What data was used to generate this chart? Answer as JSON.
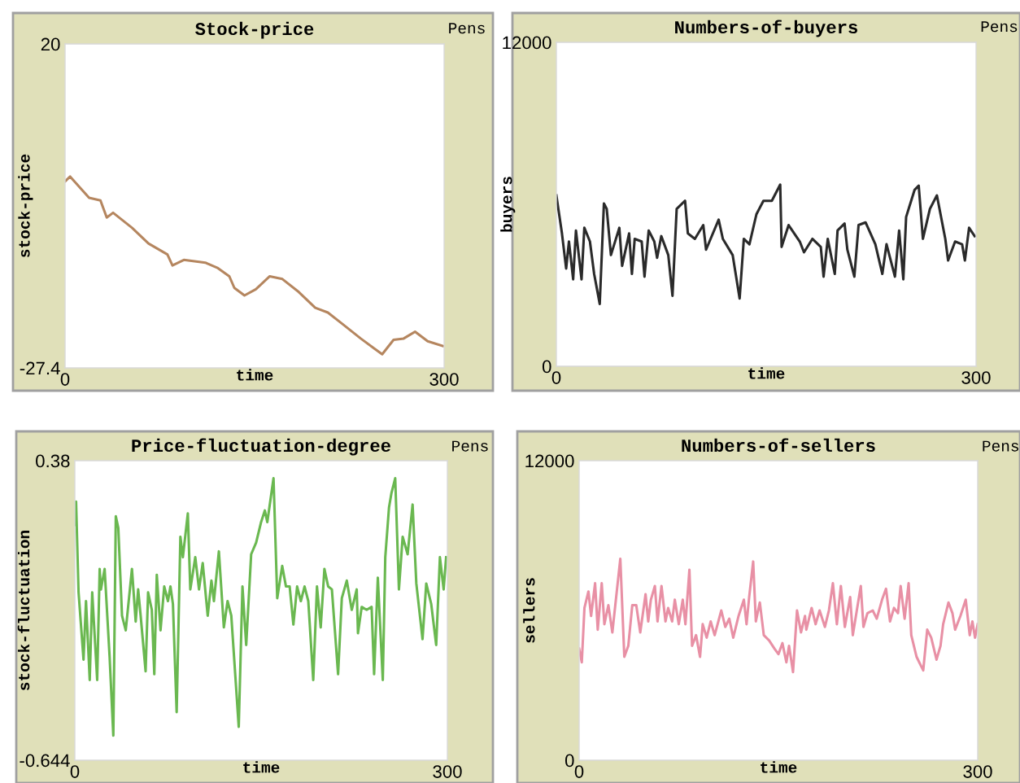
{
  "chart_data": [
    {
      "type": "line",
      "title": "Stock-price",
      "xlabel": "time",
      "ylabel": "stock-price",
      "annotations": [
        "Pens"
      ],
      "xlim": [
        0,
        300
      ],
      "ylim": [
        -27.4,
        20
      ],
      "xticks": [
        0,
        300
      ],
      "yticks": [
        -27.4,
        20
      ],
      "x": [
        0,
        4,
        19,
        28,
        33,
        38,
        53,
        66,
        81,
        85,
        94,
        111,
        121,
        130,
        134,
        142,
        151,
        162,
        172,
        185,
        198,
        208,
        219,
        234,
        245,
        251,
        260,
        268,
        277,
        287,
        299
      ],
      "series": [
        {
          "color": "#b5865f",
          "values": [
            -0.1,
            0.6,
            -2.5,
            -2.9,
            -5.4,
            -4.7,
            -6.9,
            -9.2,
            -10.8,
            -12.4,
            -11.6,
            -12.0,
            -12.8,
            -14.0,
            -15.7,
            -16.8,
            -15.9,
            -14.0,
            -14.4,
            -16.3,
            -18.6,
            -19.3,
            -20.9,
            -23.1,
            -24.6,
            -25.4,
            -23.3,
            -23.1,
            -22.1,
            -23.5,
            -24.2
          ]
        }
      ]
    },
    {
      "type": "line",
      "title": "Numbers-of-buyers",
      "xlabel": "time",
      "ylabel": "buyers",
      "annotations": [
        "Pens"
      ],
      "xlim": [
        0,
        300
      ],
      "ylim": [
        0,
        12000
      ],
      "xticks": [
        0,
        300
      ],
      "yticks": [
        0,
        12000
      ],
      "x": [
        0,
        4,
        7,
        9,
        12,
        14,
        18,
        20,
        24,
        27,
        31,
        34,
        36,
        39,
        45,
        47,
        52,
        54,
        56,
        61,
        63,
        66,
        70,
        72,
        75,
        80,
        83,
        86,
        92,
        94,
        99,
        105,
        107,
        116,
        119,
        126,
        131,
        134,
        138,
        143,
        148,
        154,
        160,
        161,
        166,
        174,
        177,
        183,
        189,
        191,
        194,
        199,
        201,
        206,
        208,
        213,
        216,
        221,
        228,
        233,
        236,
        242,
        245,
        248,
        250,
        256,
        259,
        262,
        267,
        272,
        278,
        280,
        285,
        290,
        292,
        295,
        299
      ],
      "series": [
        {
          "color": "#2a2a2a",
          "values": [
            6330,
            4920,
            3620,
            4620,
            3220,
            5030,
            3220,
            5130,
            4620,
            3420,
            2310,
            6030,
            5830,
            4120,
            5130,
            3720,
            4920,
            3420,
            4720,
            4620,
            3320,
            5030,
            4620,
            4020,
            4820,
            4120,
            2610,
            5830,
            6130,
            4920,
            4720,
            5230,
            4320,
            5430,
            4720,
            4120,
            2510,
            4720,
            4520,
            5630,
            6130,
            6130,
            6730,
            4420,
            5230,
            4620,
            4220,
            4720,
            4420,
            3320,
            4720,
            3420,
            5030,
            5290,
            4320,
            3320,
            5230,
            5330,
            4520,
            3420,
            4520,
            3320,
            5030,
            3220,
            5530,
            6530,
            6690,
            4720,
            5830,
            6330,
            4720,
            3920,
            4620,
            4520,
            3920,
            5130,
            4820
          ]
        }
      ]
    },
    {
      "type": "line",
      "title": "Price-fluctuation-degree",
      "xlabel": "time",
      "ylabel": "stock-fluctuation",
      "annotations": [
        "Pens"
      ],
      "xlim": [
        0,
        300
      ],
      "ylim": [
        -0.644,
        0.38
      ],
      "xticks": [
        0,
        300
      ],
      "yticks": [
        -0.644,
        0.38
      ],
      "x": [
        0,
        1,
        3,
        7,
        9,
        12,
        14,
        18,
        20,
        21,
        24,
        28,
        31,
        33,
        35,
        38,
        41,
        46,
        49,
        51,
        53,
        57,
        59,
        62,
        64,
        66,
        69,
        72,
        75,
        77,
        79,
        82,
        85,
        87,
        91,
        93,
        97,
        100,
        103,
        107,
        110,
        112,
        116,
        120,
        123,
        126,
        132,
        135,
        138,
        142,
        146,
        150,
        153,
        155,
        160,
        163,
        167,
        170,
        173,
        176,
        179,
        182,
        185,
        188,
        192,
        195,
        198,
        201,
        204,
        207,
        212,
        215,
        219,
        223,
        227,
        228,
        231,
        235,
        239,
        241,
        244,
        248,
        250,
        253,
        255,
        258,
        261,
        264,
        268,
        272,
        275,
        280,
        283,
        287,
        291,
        294,
        297,
        299
      ],
      "series": [
        {
          "color": "#6ab850",
          "values": [
            0.16,
            0.24,
            -0.07,
            -0.3,
            -0.1,
            -0.37,
            -0.07,
            -0.37,
            0.01,
            -0.06,
            0.01,
            -0.29,
            -0.56,
            0.19,
            0.15,
            -0.15,
            -0.2,
            0.01,
            -0.17,
            -0.06,
            -0.15,
            -0.34,
            -0.07,
            -0.13,
            -0.35,
            -0.01,
            -0.2,
            -0.05,
            -0.1,
            -0.05,
            -0.11,
            -0.48,
            0.12,
            0.05,
            0.2,
            -0.06,
            0.05,
            -0.06,
            0.03,
            -0.15,
            -0.03,
            -0.1,
            0.07,
            -0.19,
            -0.1,
            -0.15,
            -0.53,
            -0.05,
            -0.25,
            0.06,
            0.1,
            0.17,
            0.21,
            0.17,
            0.32,
            -0.09,
            0.02,
            -0.05,
            -0.05,
            -0.18,
            -0.05,
            -0.1,
            -0.05,
            -0.1,
            -0.37,
            -0.05,
            -0.19,
            0.01,
            -0.05,
            -0.06,
            -0.35,
            -0.09,
            -0.03,
            -0.13,
            -0.06,
            -0.21,
            -0.12,
            -0.13,
            -0.12,
            -0.35,
            -0.02,
            -0.37,
            0.05,
            0.22,
            0.27,
            0.32,
            -0.06,
            0.12,
            0.06,
            0.23,
            -0.04,
            -0.23,
            -0.04,
            -0.11,
            -0.25,
            0.05,
            -0.06,
            0.05
          ]
        }
      ]
    },
    {
      "type": "line",
      "title": "Numbers-of-sellers",
      "xlabel": "time",
      "ylabel": "sellers",
      "annotations": [
        "Pens"
      ],
      "xlim": [
        0,
        300
      ],
      "ylim": [
        0,
        12000
      ],
      "xticks": [
        0,
        300
      ],
      "yticks": [
        0,
        12000
      ],
      "x": [
        0,
        2,
        4,
        7,
        9,
        12,
        14,
        17,
        19,
        22,
        25,
        31,
        34,
        37,
        40,
        43,
        46,
        50,
        52,
        54,
        57,
        59,
        62,
        65,
        67,
        70,
        72,
        75,
        78,
        80,
        83,
        85,
        88,
        91,
        93,
        96,
        99,
        102,
        107,
        110,
        113,
        116,
        120,
        124,
        126,
        128,
        131,
        133,
        136,
        139,
        143,
        147,
        150,
        153,
        156,
        158,
        161,
        164,
        167,
        170,
        171,
        175,
        178,
        181,
        185,
        188,
        191,
        194,
        197,
        200,
        204,
        206,
        209,
        212,
        214,
        217,
        221,
        224,
        228,
        231,
        234,
        237,
        240,
        242,
        245,
        248,
        250,
        254,
        256,
        259,
        262,
        265,
        269,
        272,
        274,
        278,
        281,
        283,
        287,
        291,
        294,
        296,
        298,
        300
      ],
      "series": [
        {
          "color": "#e890a5",
          "values": [
            4470,
            3920,
            6100,
            6760,
            5780,
            7090,
            5230,
            7090,
            5450,
            6210,
            5120,
            8070,
            4140,
            4580,
            6210,
            6210,
            5120,
            6650,
            5560,
            6430,
            6980,
            5560,
            6980,
            5560,
            6100,
            5560,
            6430,
            5450,
            6430,
            5450,
            7630,
            4580,
            5010,
            4140,
            5450,
            4910,
            5560,
            5010,
            6000,
            5340,
            5670,
            4910,
            5780,
            6430,
            5450,
            6540,
            7960,
            5560,
            6320,
            5010,
            4800,
            4470,
            4250,
            4690,
            3920,
            4580,
            3530,
            6000,
            5120,
            5780,
            5230,
            6100,
            5450,
            6000,
            5340,
            6000,
            7090,
            5450,
            6980,
            5340,
            6540,
            5010,
            6000,
            6980,
            5340,
            5890,
            6000,
            5670,
            6430,
            6870,
            5560,
            6100,
            5890,
            6980,
            5670,
            7090,
            5010,
            4140,
            3920,
            3600,
            5230,
            4910,
            4030,
            4580,
            5450,
            6320,
            5890,
            5230,
            5780,
            6430,
            5010,
            5560,
            4910,
            5450
          ]
        }
      ]
    }
  ]
}
